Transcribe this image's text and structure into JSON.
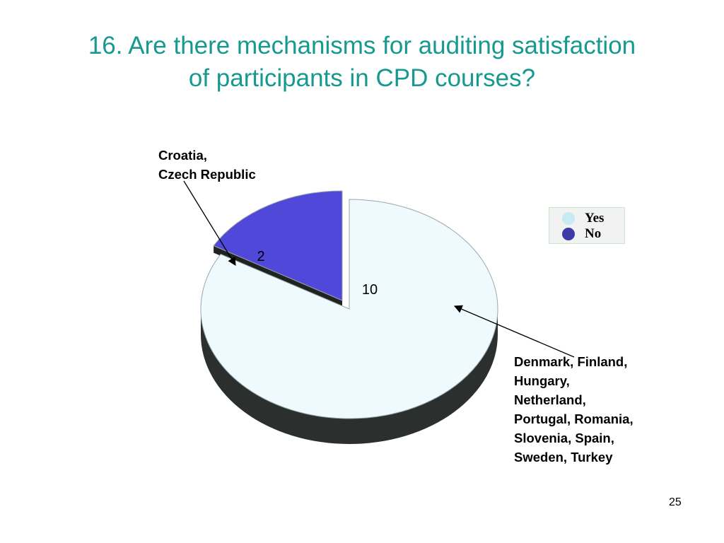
{
  "slide": {
    "title_line1": "16. Are there mechanisms for auditing satisfaction",
    "title_line2": "of participants in CPD courses?",
    "page_number": "25"
  },
  "annotations": {
    "no_countries": [
      "Croatia,",
      "Czech Republic"
    ],
    "yes_countries": [
      "Denmark, Finland,",
      "Hungary,",
      "Netherland,",
      "Portugal, Romania,",
      "Slovenia, Spain,",
      "Sweden, Turkey"
    ]
  },
  "chart_data": {
    "type": "pie",
    "title": "16. Are there mechanisms for auditing satisfaction of participants in CPD courses?",
    "categories": [
      "Yes",
      "No"
    ],
    "values": [
      10,
      2
    ],
    "data_labels": [
      "10",
      "2"
    ],
    "colors": [
      "#eefafd",
      "#5048d8"
    ],
    "legend": {
      "position": "right",
      "entries": [
        {
          "label": "Yes",
          "color": "#c8ebf2"
        },
        {
          "label": "No",
          "color": "#3d3aa8"
        }
      ]
    },
    "three_d": true,
    "exploded": "No"
  }
}
